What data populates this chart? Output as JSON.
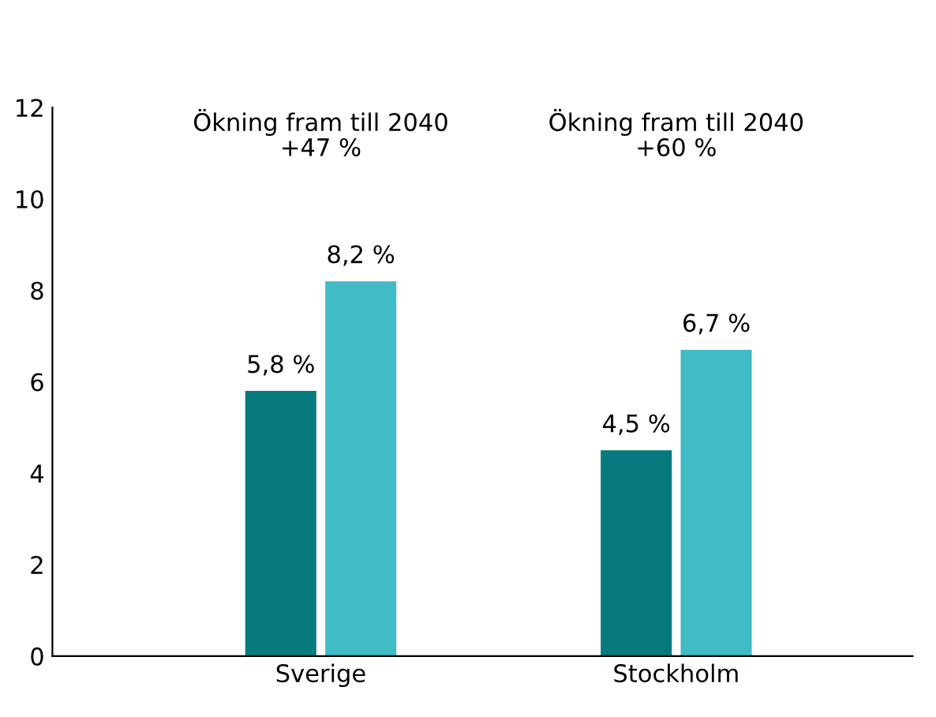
{
  "chart_data": {
    "type": "bar",
    "categories": [
      "Sverige",
      "Stockholm"
    ],
    "series": [
      {
        "color": "#077a7d",
        "values": [
          5.8,
          4.5
        ],
        "value_labels": [
          "5,8 %",
          "4,5 %"
        ]
      },
      {
        "color": "#41bbc5",
        "values": [
          8.2,
          6.7
        ],
        "value_labels": [
          "8,2 %",
          "6,7 %"
        ]
      }
    ],
    "ylim": [
      0,
      12
    ],
    "yticks": [
      0,
      2,
      4,
      6,
      8,
      10,
      12
    ],
    "grid": false,
    "legend": false,
    "annotations": [
      "Ökning fram till 2040\n+47 %",
      "Ökning fram till 2040\n+60 %"
    ]
  }
}
